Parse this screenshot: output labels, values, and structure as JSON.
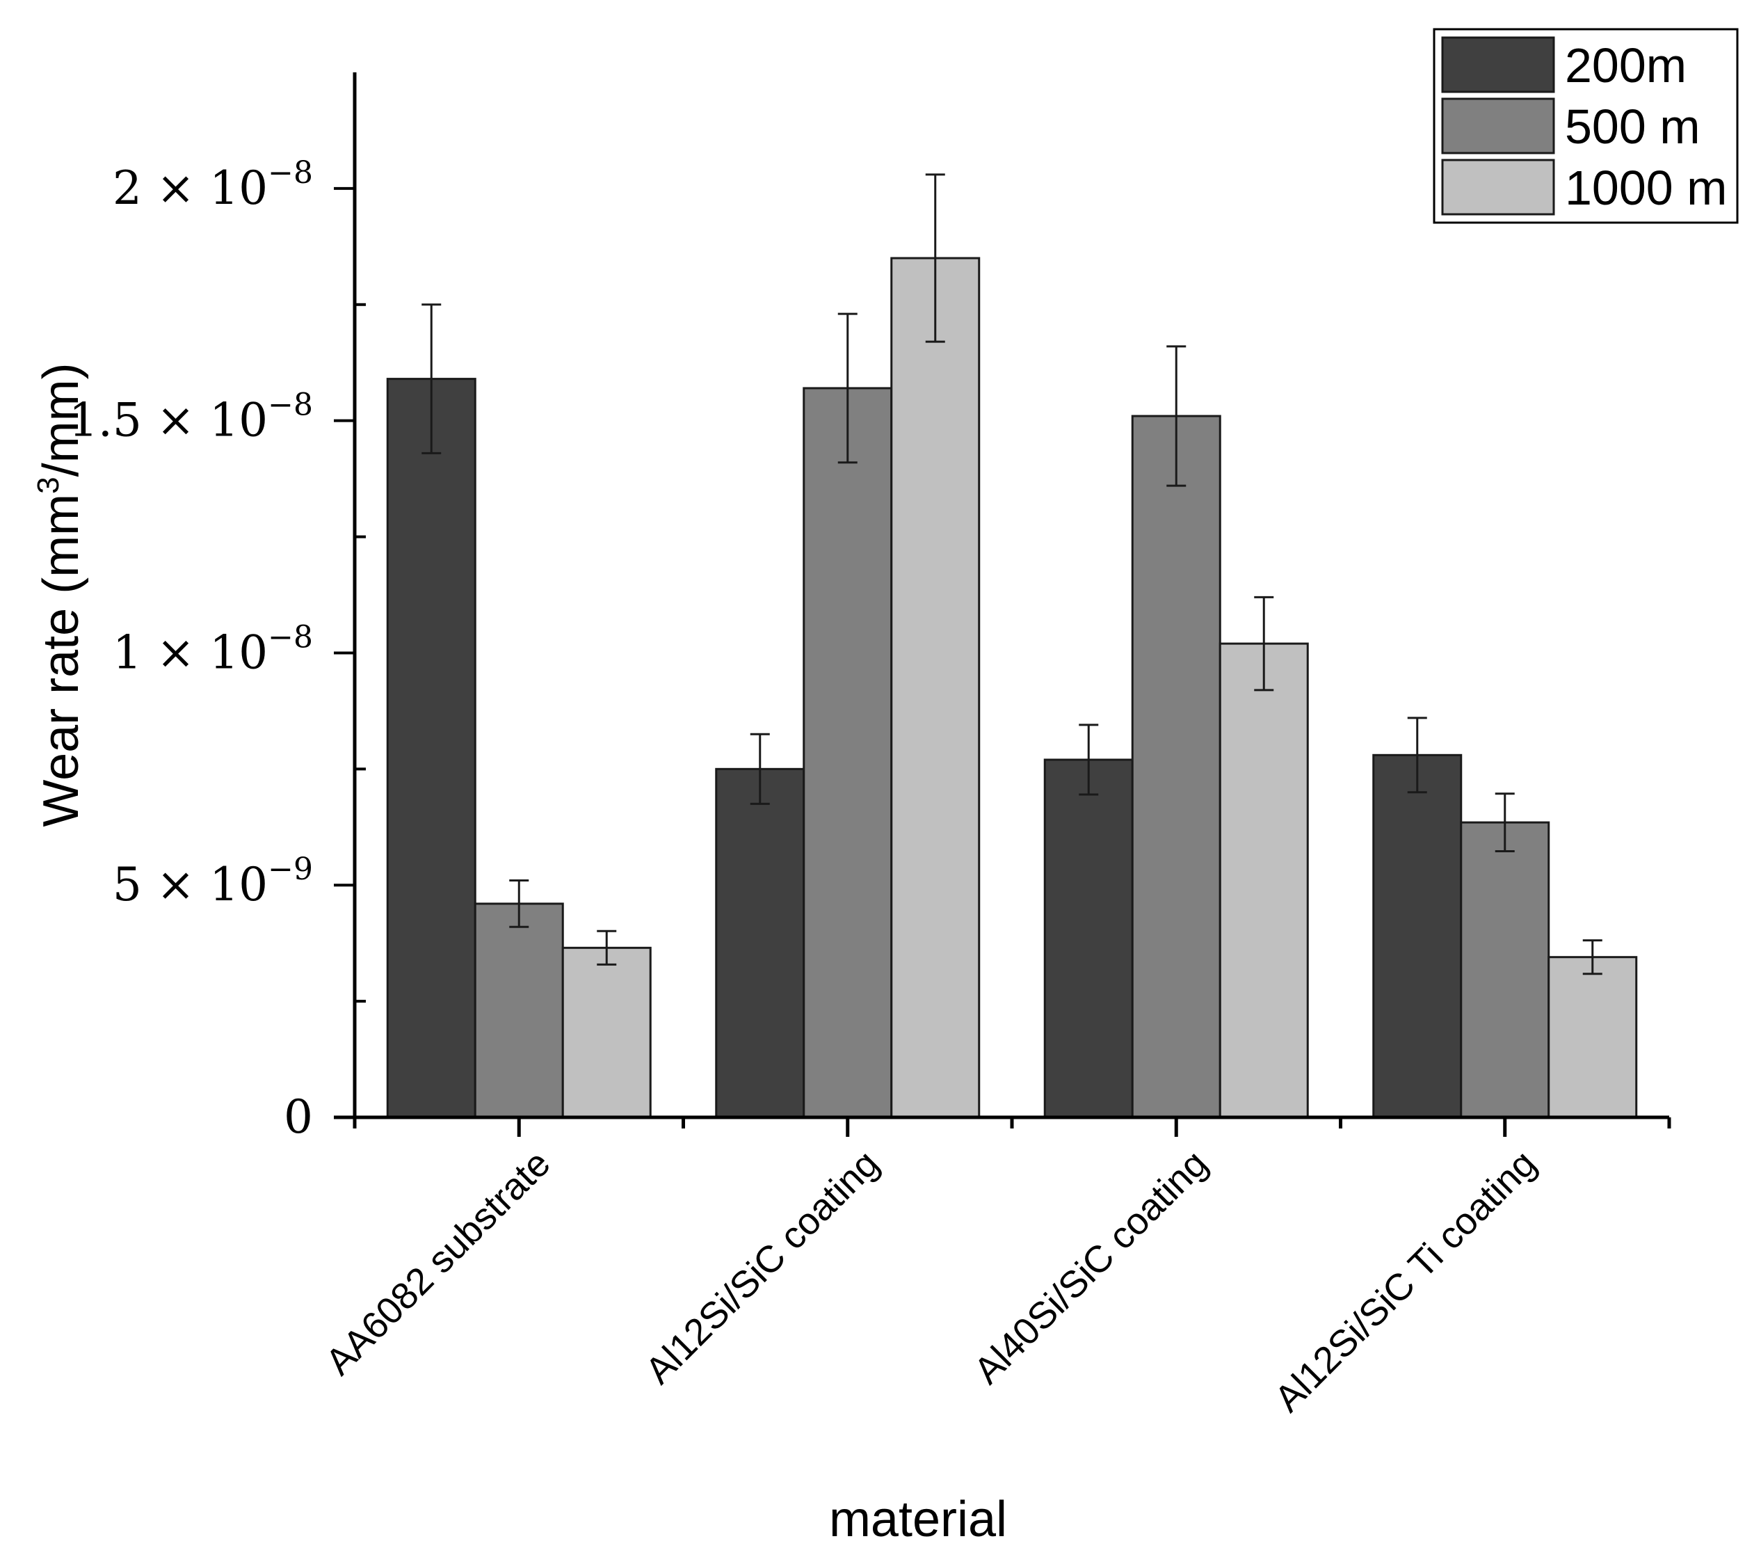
{
  "chart_data": {
    "type": "bar",
    "title": "",
    "xlabel": "material",
    "ylabel": "Wear rate (mm³/mm)",
    "ylabel_parts": {
      "pre": "Wear rate (mm",
      "sup": "3",
      "post": "/mm)"
    },
    "ylim": [
      0,
      2.25e-08
    ],
    "y_ticks": [
      {
        "value": 0,
        "base": "0",
        "exp": ""
      },
      {
        "value": 5e-09,
        "base": "5 × 10",
        "exp": "−9"
      },
      {
        "value": 1e-08,
        "base": "1 × 10",
        "exp": "−8"
      },
      {
        "value": 1.5e-08,
        "base": "1.5 × 10",
        "exp": "−8"
      },
      {
        "value": 2e-08,
        "base": "2 × 10",
        "exp": "−8"
      }
    ],
    "categories": [
      "AA6082 substrate",
      "Al12Si/SiC coating",
      "Al40Si/SiC coating",
      "Al12Si/SiC Ti coating"
    ],
    "series": [
      {
        "name": "200m",
        "color": "#404040",
        "values": [
          1.59e-08,
          7.5e-09,
          7.7e-09,
          7.8e-09
        ],
        "errors": [
          1.6e-09,
          7.5e-10,
          7.5e-10,
          8e-10
        ]
      },
      {
        "name": "500 m",
        "color": "#808080",
        "values": [
          4.6e-09,
          1.57e-08,
          1.51e-08,
          6.35e-09
        ],
        "errors": [
          5e-10,
          1.6e-09,
          1.5e-09,
          6.2e-10
        ]
      },
      {
        "name": "1000 m",
        "color": "#c0c0c0",
        "values": [
          3.65e-09,
          1.85e-08,
          1.02e-08,
          3.45e-09
        ],
        "errors": [
          3.6e-10,
          1.8e-09,
          1e-09,
          3.6e-10
        ]
      }
    ],
    "legend": "top-right",
    "grid": false
  }
}
